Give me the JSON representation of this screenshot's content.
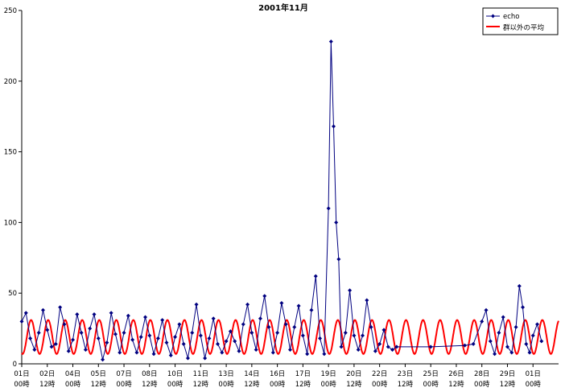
{
  "chart_data": {
    "type": "line",
    "title": "2001年11月",
    "ylim": [
      0,
      250
    ],
    "yticks": [
      0,
      50,
      100,
      150,
      200,
      250
    ],
    "x_range_days": [
      0,
      31.5
    ],
    "x_tick_labels": [
      {
        "day": 0,
        "top": "01日",
        "bottom": "00時"
      },
      {
        "day": 1,
        "top": "02日",
        "bottom": "12時"
      },
      {
        "day": 2,
        "top": "04日",
        "bottom": "00時"
      },
      {
        "day": 3,
        "top": "05日",
        "bottom": "12時"
      },
      {
        "day": 4,
        "top": "07日",
        "bottom": "00時"
      },
      {
        "day": 5,
        "top": "08日",
        "bottom": "12時"
      },
      {
        "day": 6,
        "top": "10日",
        "bottom": "00時"
      },
      {
        "day": 7,
        "top": "11日",
        "bottom": "12時"
      },
      {
        "day": 8,
        "top": "13日",
        "bottom": "00時"
      },
      {
        "day": 9,
        "top": "14日",
        "bottom": "12時"
      },
      {
        "day": 10,
        "top": "16日",
        "bottom": "00時"
      },
      {
        "day": 11,
        "top": "17日",
        "bottom": "12時"
      },
      {
        "day": 12,
        "top": "19日",
        "bottom": "00時"
      },
      {
        "day": 13,
        "top": "20日",
        "bottom": "12時"
      },
      {
        "day": 14,
        "top": "22日",
        "bottom": "00時"
      },
      {
        "day": 15,
        "top": "23日",
        "bottom": "12時"
      },
      {
        "day": 16,
        "top": "25日",
        "bottom": "00時"
      },
      {
        "day": 17,
        "top": "26日",
        "bottom": "12時"
      },
      {
        "day": 18,
        "top": "28日",
        "bottom": "00時"
      },
      {
        "day": 19,
        "top": "29日",
        "bottom": "12時"
      },
      {
        "day": 20,
        "top": "01日",
        "bottom": "00時"
      }
    ],
    "series": [
      {
        "name": "echo",
        "color": "#000080",
        "marker": "diamond",
        "points": [
          [
            0.0,
            30
          ],
          [
            0.25,
            36
          ],
          [
            0.5,
            18
          ],
          [
            0.75,
            10
          ],
          [
            1.0,
            22
          ],
          [
            1.25,
            38
          ],
          [
            1.5,
            24
          ],
          [
            1.75,
            12
          ],
          [
            2.0,
            14
          ],
          [
            2.25,
            40
          ],
          [
            2.5,
            28
          ],
          [
            2.75,
            9
          ],
          [
            3.0,
            17
          ],
          [
            3.25,
            35
          ],
          [
            3.5,
            22
          ],
          [
            3.75,
            10
          ],
          [
            4.0,
            25
          ],
          [
            4.25,
            35
          ],
          [
            4.5,
            18
          ],
          [
            4.75,
            3
          ],
          [
            5.0,
            15
          ],
          [
            5.25,
            36
          ],
          [
            5.5,
            21
          ],
          [
            5.75,
            8
          ],
          [
            6.0,
            22
          ],
          [
            6.25,
            34
          ],
          [
            6.5,
            17
          ],
          [
            6.75,
            8
          ],
          [
            7.0,
            19
          ],
          [
            7.25,
            33
          ],
          [
            7.5,
            20
          ],
          [
            7.75,
            7
          ],
          [
            8.0,
            18
          ],
          [
            8.25,
            31
          ],
          [
            8.5,
            15
          ],
          [
            8.75,
            6
          ],
          [
            9.0,
            19
          ],
          [
            9.25,
            28
          ],
          [
            9.5,
            14
          ],
          [
            9.75,
            4
          ],
          [
            10.0,
            22
          ],
          [
            10.25,
            42
          ],
          [
            10.5,
            20
          ],
          [
            10.75,
            4
          ],
          [
            11.0,
            18
          ],
          [
            11.25,
            32
          ],
          [
            11.5,
            14
          ],
          [
            11.75,
            8
          ],
          [
            12.0,
            16
          ],
          [
            12.25,
            23
          ],
          [
            12.5,
            16
          ],
          [
            12.75,
            9
          ],
          [
            13.0,
            28
          ],
          [
            13.25,
            42
          ],
          [
            13.5,
            22
          ],
          [
            13.75,
            10
          ],
          [
            14.0,
            32
          ],
          [
            14.25,
            48
          ],
          [
            14.5,
            26
          ],
          [
            14.75,
            8
          ],
          [
            15.0,
            22
          ],
          [
            15.25,
            43
          ],
          [
            15.5,
            28
          ],
          [
            15.75,
            10
          ],
          [
            16.0,
            26
          ],
          [
            16.25,
            41
          ],
          [
            16.5,
            20
          ],
          [
            16.75,
            7
          ],
          [
            17.0,
            38
          ],
          [
            17.25,
            62
          ],
          [
            17.5,
            18
          ],
          [
            17.75,
            7
          ],
          [
            18.0,
            110
          ],
          [
            18.15,
            228
          ],
          [
            18.3,
            168
          ],
          [
            18.45,
            100
          ],
          [
            18.6,
            74
          ],
          [
            18.75,
            12
          ],
          [
            19.0,
            22
          ],
          [
            19.25,
            52
          ],
          [
            19.5,
            20
          ],
          [
            19.75,
            10
          ],
          [
            20.0,
            20
          ],
          [
            20.25,
            45
          ],
          [
            20.5,
            26
          ],
          [
            20.75,
            9
          ],
          [
            21.0,
            14
          ],
          [
            21.25,
            24
          ],
          [
            21.5,
            12
          ],
          [
            21.75,
            10
          ],
          [
            22.0,
            12
          ],
          [
            24.0,
            12
          ],
          [
            26.0,
            13
          ],
          [
            26.5,
            14
          ],
          [
            27.0,
            30
          ],
          [
            27.25,
            38
          ],
          [
            27.5,
            16
          ],
          [
            27.75,
            7
          ],
          [
            28.0,
            22
          ],
          [
            28.25,
            33
          ],
          [
            28.5,
            12
          ],
          [
            28.75,
            8
          ],
          [
            29.0,
            26
          ],
          [
            29.2,
            55
          ],
          [
            29.4,
            40
          ],
          [
            29.6,
            14
          ],
          [
            29.8,
            8
          ],
          [
            30.0,
            20
          ],
          [
            30.25,
            28
          ],
          [
            30.5,
            16
          ]
        ]
      },
      {
        "name": "群以外の平均",
        "color": "#ff0000",
        "marker": "none",
        "periodic": {
          "period_days": 1.0,
          "min": 7,
          "max": 31,
          "peak_phase": 0.55
        }
      }
    ],
    "legend": {
      "position": "top-right",
      "entries": [
        "echo",
        "群以外の平均"
      ]
    },
    "grid": false
  }
}
